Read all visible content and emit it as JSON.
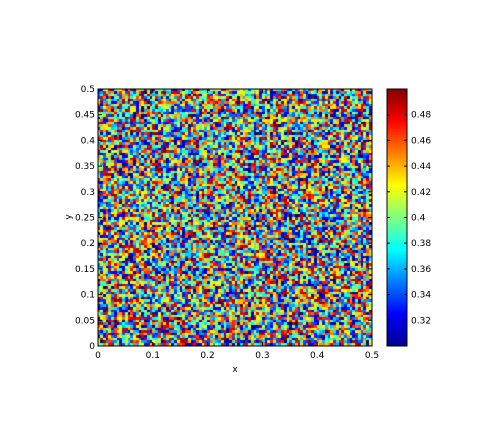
{
  "chart_data": {
    "type": "heatmap",
    "title": "",
    "xlabel": "x",
    "ylabel": "y",
    "xlim": [
      0,
      0.5
    ],
    "ylim": [
      0,
      0.5
    ],
    "x_ticks": [
      "0",
      "0.1",
      "0.2",
      "0.3",
      "0.4",
      "0.5"
    ],
    "y_ticks": [
      "0",
      "0.05",
      "0.1",
      "0.15",
      "0.2",
      "0.25",
      "0.3",
      "0.35",
      "0.4",
      "0.45",
      "0.5"
    ],
    "grid": false,
    "colormap": "jet",
    "colorbar": {
      "range": [
        0.3,
        0.5
      ],
      "ticks": [
        "0.32",
        "0.34",
        "0.36",
        "0.38",
        "0.4",
        "0.42",
        "0.44",
        "0.46",
        "0.48"
      ]
    },
    "grid_size": [
      100,
      100
    ],
    "value_range": [
      0.3,
      0.5
    ],
    "pattern": "uniform random noise"
  }
}
